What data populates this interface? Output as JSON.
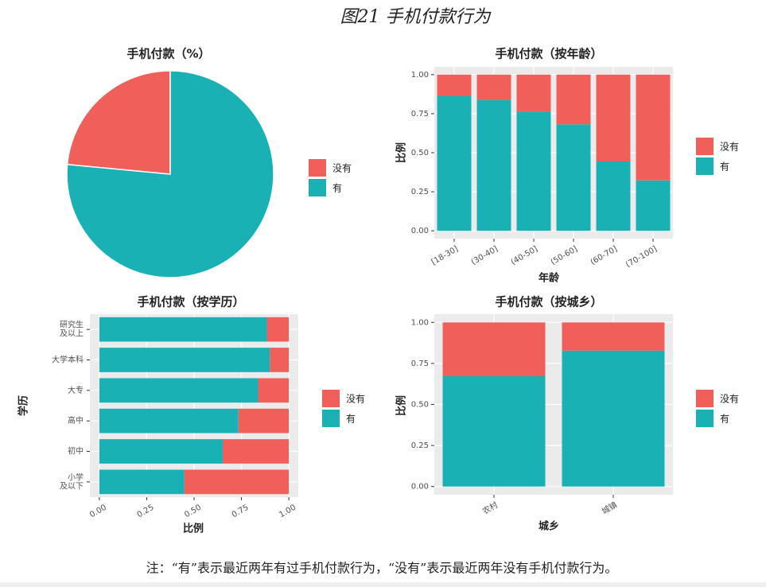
{
  "title": "图21 手机付款行为",
  "note": "注：“有”表示最近两年有过手机付款行为，“没有”表示最近两年没有手机付款行为。",
  "chart_data": [
    {
      "type": "pie",
      "title": "手机付款（%）",
      "categories": [
        "没有",
        "有"
      ],
      "values": [
        23.5,
        76.5
      ],
      "colors": [
        "#F15F5B",
        "#19B1B4"
      ],
      "legend": "right"
    },
    {
      "type": "bar",
      "title": "手机付款（按年龄）",
      "xlabel": "年龄",
      "ylabel": "比例",
      "categories": [
        "[18-30]",
        "(30-40]",
        "(40-50]",
        "(50-60]",
        "(60-70]",
        "(70-100]"
      ],
      "series": [
        {
          "name": "没有",
          "color": "#F15F5B",
          "values": [
            0.136,
            0.162,
            0.237,
            0.318,
            0.556,
            0.677
          ]
        },
        {
          "name": "有",
          "color": "#19B1B4",
          "values": [
            0.864,
            0.838,
            0.763,
            0.682,
            0.444,
            0.323
          ]
        }
      ],
      "ylim": [
        -0.05,
        1.05
      ],
      "yticks": [
        {
          "value": 0,
          "label": "0.00"
        },
        {
          "value": 0.25,
          "label": "0.25"
        },
        {
          "value": 0.5,
          "label": "0.50"
        },
        {
          "value": 0.75,
          "label": "0.75"
        },
        {
          "value": 1,
          "label": "1.00"
        }
      ],
      "grid": true,
      "stacked": true,
      "legend": "right"
    },
    {
      "type": "barh",
      "title": "手机付款（按学历）",
      "xlabel": "比例",
      "ylabel": "学历",
      "categories": [
        "研究生\n及以上",
        "大学本科",
        "大专",
        "高中",
        "初中",
        "小学\n及以下"
      ],
      "series": [
        {
          "name": "没有",
          "color": "#F15F5B",
          "values": [
            0.116,
            0.1,
            0.162,
            0.266,
            0.349,
            0.552
          ]
        },
        {
          "name": "有",
          "color": "#19B1B4",
          "values": [
            0.884,
            0.9,
            0.838,
            0.734,
            0.651,
            0.448
          ]
        }
      ],
      "xlim": [
        -0.05,
        1.05
      ],
      "xticks": [
        {
          "value": 0,
          "label": "0.00"
        },
        {
          "value": 0.25,
          "label": "0.25"
        },
        {
          "value": 0.5,
          "label": "0.50"
        },
        {
          "value": 0.75,
          "label": "0.75"
        },
        {
          "value": 1,
          "label": "1.00"
        }
      ],
      "grid": true,
      "stacked": true,
      "legend": "right"
    },
    {
      "type": "bar",
      "title": "手机付款（按城乡）",
      "xlabel": "城乡",
      "ylabel": "比例",
      "categories": [
        "农村",
        "城镇"
      ],
      "series": [
        {
          "name": "没有",
          "color": "#F15F5B",
          "values": [
            0.328,
            0.172
          ]
        },
        {
          "name": "有",
          "color": "#19B1B4",
          "values": [
            0.672,
            0.828
          ]
        }
      ],
      "ylim": [
        -0.05,
        1.05
      ],
      "yticks": [
        {
          "value": 0,
          "label": "0.00"
        },
        {
          "value": 0.25,
          "label": "0.25"
        },
        {
          "value": 0.5,
          "label": "0.50"
        },
        {
          "value": 0.75,
          "label": "0.75"
        },
        {
          "value": 1,
          "label": "1.00"
        }
      ],
      "grid": true,
      "stacked": true,
      "legend": "right"
    }
  ]
}
